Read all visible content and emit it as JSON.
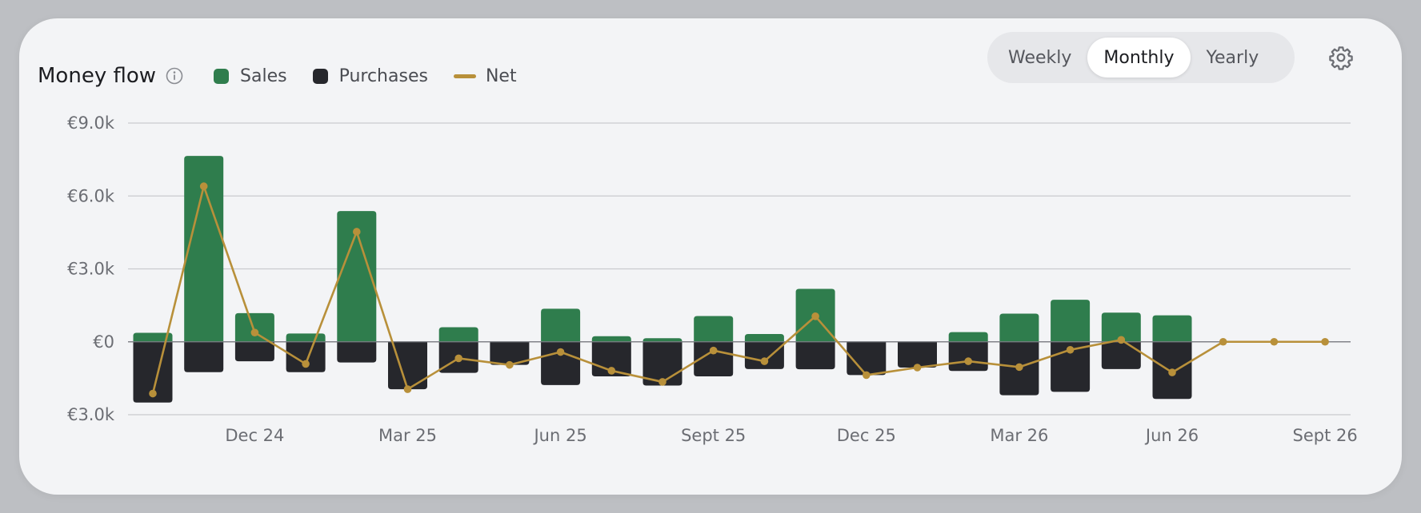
{
  "header": {
    "title": "Money flow",
    "legend": [
      {
        "label": "Sales",
        "color": "#2f7d4d",
        "kind": "square"
      },
      {
        "label": "Purchases",
        "color": "#26272c",
        "kind": "square"
      },
      {
        "label": "Net",
        "color": "#b8903a",
        "kind": "line"
      }
    ]
  },
  "period_toggle": {
    "options": [
      "Weekly",
      "Monthly",
      "Yearly"
    ],
    "selected": "Monthly"
  },
  "chart_data": {
    "type": "bar",
    "categories": [
      "Oct 24",
      "Nov 24",
      "Dec 24",
      "Jan 25",
      "Feb 25",
      "Mar 25",
      "Apr 25",
      "May 25",
      "Jun 25",
      "Jul 25",
      "Aug 25",
      "Sep 25",
      "Oct 25",
      "Nov 25",
      "Dec 25",
      "Jan 26",
      "Feb 26",
      "Mar 26",
      "Apr 26",
      "May 26",
      "Jun 26",
      "Jul 26",
      "Aug 26",
      "Sep 26"
    ],
    "x_tick_labels": [
      {
        "index": 2,
        "label": "Dec 24"
      },
      {
        "index": 5,
        "label": "Mar 25"
      },
      {
        "index": 8,
        "label": "Jun 25"
      },
      {
        "index": 11,
        "label": "Sept 25"
      },
      {
        "index": 14,
        "label": "Dec 25"
      },
      {
        "index": 17,
        "label": "Mar 26"
      },
      {
        "index": 20,
        "label": "Jun 26"
      },
      {
        "index": 23,
        "label": "Sept 26"
      }
    ],
    "y_ticks": [
      {
        "value": 9000,
        "label": "€9.0k"
      },
      {
        "value": 6000,
        "label": "€6.0k"
      },
      {
        "value": 3000,
        "label": "€3.0k"
      },
      {
        "value": 0,
        "label": "€0"
      },
      {
        "value": -3000,
        "label": "€3.0k"
      }
    ],
    "ylim": [
      -3000,
      9000
    ],
    "series": [
      {
        "name": "Sales",
        "values": [
          370,
          7650,
          1180,
          340,
          5380,
          0,
          600,
          0,
          1360,
          230,
          150,
          1060,
          320,
          2180,
          0,
          0,
          400,
          1160,
          1730,
          1200,
          1090,
          0,
          0,
          0
        ]
      },
      {
        "name": "Purchases",
        "values": [
          -2500,
          -1250,
          -800,
          -1250,
          -850,
          -1950,
          -1280,
          -950,
          -1780,
          -1420,
          -1800,
          -1420,
          -1120,
          -1130,
          -1370,
          -1060,
          -1200,
          -2200,
          -2060,
          -1120,
          -2350,
          0,
          0,
          0
        ]
      },
      {
        "name": "Net",
        "values": [
          -2130,
          6400,
          380,
          -910,
          4530,
          -1950,
          -680,
          -950,
          -420,
          -1190,
          -1650,
          -360,
          -800,
          1050,
          -1370,
          -1060,
          -800,
          -1040,
          -330,
          80,
          -1260,
          0,
          0,
          0
        ]
      }
    ]
  }
}
